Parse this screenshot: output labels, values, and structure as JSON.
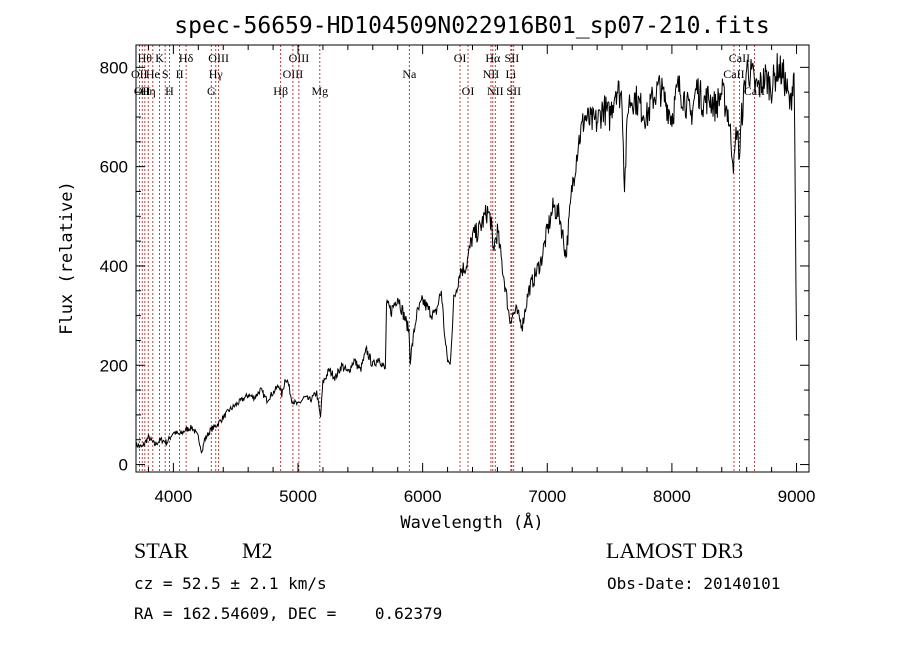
{
  "chart_data": {
    "type": "line",
    "title": "spec-56659-HD104509N022916B01_sp07-210.fits",
    "xlabel": "Wavelength (Å)",
    "ylabel": "Flux (relative)",
    "xlim": [
      3700,
      9100
    ],
    "ylim": [
      -15,
      845
    ],
    "xticks": [
      4000,
      5000,
      6000,
      7000,
      8000,
      9000
    ],
    "yticks": [
      0,
      200,
      400,
      600,
      800
    ],
    "grid": false,
    "series": [
      {
        "x": [
          3700,
          3750,
          3800,
          3850,
          3900,
          3950,
          4000,
          4050,
          4100,
          4150,
          4200,
          4230,
          4250,
          4300,
          4350,
          4400,
          4450,
          4500,
          4550,
          4600,
          4650,
          4700,
          4750,
          4800,
          4850,
          4870,
          4900,
          4920,
          4950,
          5000,
          5050,
          5100,
          5150,
          5180,
          5200,
          5250,
          5300,
          5350,
          5400,
          5450,
          5500,
          5550,
          5600,
          5650,
          5700,
          5710,
          5750,
          5800,
          5850,
          5890,
          5900,
          5950,
          6000,
          6050,
          6100,
          6150,
          6180,
          6200,
          6220,
          6250,
          6300,
          6350,
          6400,
          6450,
          6500,
          6520,
          6550,
          6563,
          6600,
          6650,
          6700,
          6720,
          6750,
          6800,
          6850,
          6900,
          6950,
          7000,
          7050,
          7100,
          7150,
          7200,
          7250,
          7300,
          7350,
          7400,
          7450,
          7500,
          7550,
          7600,
          7620,
          7650,
          7700,
          7750,
          7800,
          7850,
          7900,
          7950,
          8000,
          8050,
          8100,
          8150,
          8200,
          8250,
          8300,
          8350,
          8400,
          8450,
          8498,
          8520,
          8542,
          8560,
          8600,
          8650,
          8662,
          8700,
          8750,
          8800,
          8850,
          8900,
          8950,
          8980,
          9000
        ],
        "values": [
          40,
          35,
          55,
          40,
          50,
          45,
          65,
          60,
          70,
          75,
          55,
          25,
          50,
          70,
          80,
          95,
          110,
          120,
          130,
          140,
          135,
          150,
          130,
          145,
          160,
          140,
          175,
          165,
          130,
          120,
          135,
          130,
          145,
          95,
          165,
          190,
          175,
          200,
          185,
          210,
          190,
          230,
          200,
          215,
          190,
          320,
          310,
          340,
          300,
          270,
          210,
          300,
          330,
          310,
          300,
          350,
          250,
          210,
          200,
          330,
          390,
          400,
          460,
          470,
          500,
          510,
          490,
          430,
          470,
          380,
          290,
          300,
          310,
          280,
          350,
          380,
          410,
          470,
          520,
          500,
          420,
          560,
          650,
          700,
          690,
          690,
          720,
          700,
          760,
          740,
          560,
          730,
          740,
          720,
          700,
          740,
          760,
          730,
          700,
          760,
          740,
          700,
          760,
          730,
          740,
          720,
          750,
          710,
          600,
          680,
          620,
          700,
          800,
          780,
          760,
          760,
          780,
          760,
          800,
          780,
          720,
          800,
          250
        ]
      }
    ],
    "lines": [
      {
        "wl": 3727,
        "label": "OII",
        "row": 2
      },
      {
        "wl": 3750,
        "label": "OII",
        "row": 3
      },
      {
        "wl": 3771,
        "label": "Hθ",
        "row": 1
      },
      {
        "wl": 3798,
        "label": "Hη",
        "row": 3
      },
      {
        "wl": 3835,
        "label": "He",
        "row": 2
      },
      {
        "wl": 3889,
        "label": "K",
        "row": 1
      },
      {
        "wl": 3934,
        "label": "S",
        "row": 2
      },
      {
        "wl": 3968,
        "label": "H",
        "row": 3
      },
      {
        "wl": 4050,
        "label": "II",
        "row": 2
      },
      {
        "wl": 4102,
        "label": "Hδ",
        "row": 1
      },
      {
        "wl": 4304,
        "label": "G",
        "row": 3
      },
      {
        "wl": 4340,
        "label": "Hγ",
        "row": 2
      },
      {
        "wl": 4363,
        "label": "OIII",
        "row": 1
      },
      {
        "wl": 4861,
        "label": "Hβ",
        "row": 3
      },
      {
        "wl": 4959,
        "label": "OIII",
        "row": 2
      },
      {
        "wl": 5007,
        "label": "OIII",
        "row": 1
      },
      {
        "wl": 5175,
        "label": "Mg",
        "row": 3
      },
      {
        "wl": 5893,
        "label": "Na",
        "row": 2
      },
      {
        "wl": 6300,
        "label": "OI",
        "row": 1
      },
      {
        "wl": 6364,
        "label": "OI",
        "row": 3
      },
      {
        "wl": 6548,
        "label": "NII",
        "row": 2
      },
      {
        "wl": 6563,
        "label": "Hα",
        "row": 1
      },
      {
        "wl": 6583,
        "label": "NII",
        "row": 3
      },
      {
        "wl": 6708,
        "label": "Li",
        "row": 2
      },
      {
        "wl": 6716,
        "label": "SII",
        "row": 1
      },
      {
        "wl": 6731,
        "label": "SII",
        "row": 3
      },
      {
        "wl": 8498,
        "label": "CaII",
        "row": 2
      },
      {
        "wl": 8542,
        "label": "CaII",
        "row": 1
      },
      {
        "wl": 8662,
        "label": "CaII",
        "row": 3
      }
    ]
  },
  "info": {
    "class": "STAR",
    "subclass": "M2",
    "survey": "LAMOST DR3",
    "cz": "cz = 52.5 ± 2.1 km/s",
    "obsdate": "Obs-Date: 20140101",
    "radec": "RA = 162.54609, DEC =    0.62379"
  },
  "colors": {
    "spectrum": "#000000",
    "line_marker": "#aa1111"
  }
}
